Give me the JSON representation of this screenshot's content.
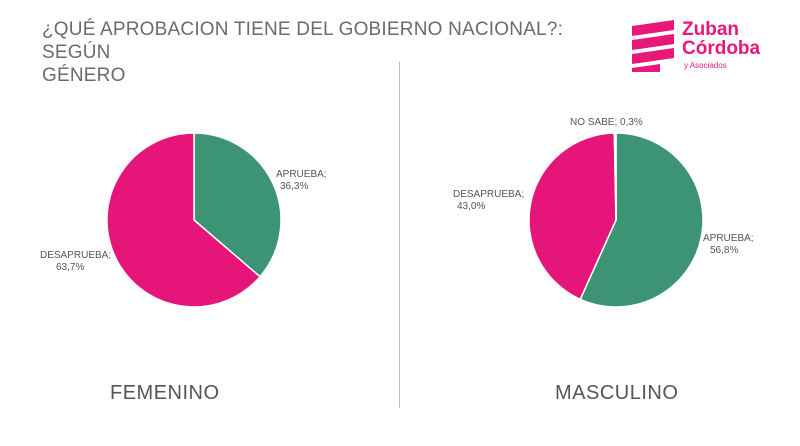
{
  "title_line1": "¿QUÉ APROBACION TIENE DEL GOBIERNO NACIONAL?: SEGÚN",
  "title_line2": "GÉNERO",
  "logo": {
    "name_line1": "Zuban",
    "name_line2": "Córdoba",
    "sub": "y Asociados"
  },
  "colors": {
    "aprueba": "#3d9474",
    "desaprueba": "#e5157a",
    "nosabe": "#d9d9d9",
    "brand": "#e8177a"
  },
  "chart_data": [
    {
      "type": "pie",
      "group_label": "FEMENINO",
      "slices": [
        {
          "label": "APRUEBA;",
          "value_text": "36,3%",
          "value": 36.3,
          "color": "#3d9474"
        },
        {
          "label": "DESAPRUEBA;",
          "value_text": "63,7%",
          "value": 63.7,
          "color": "#e5157a"
        }
      ]
    },
    {
      "type": "pie",
      "group_label": "MASCULINO",
      "slices": [
        {
          "label": "APRUEBA;",
          "value_text": "56,8%",
          "value": 56.8,
          "color": "#3d9474"
        },
        {
          "label": "DESAPRUEBA;",
          "value_text": "43,0%",
          "value": 43.0,
          "color": "#e5157a"
        },
        {
          "label": "NO SABE; 0,3%",
          "value_text": "",
          "value": 0.3,
          "color": "#d9d9d9"
        }
      ]
    }
  ]
}
